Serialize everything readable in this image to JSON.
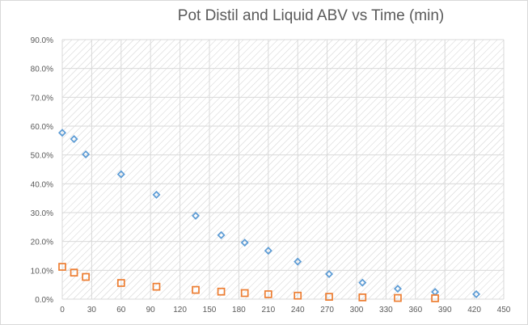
{
  "chart_data": {
    "type": "scatter",
    "title": "Pot Distil and Liquid ABV vs Time (min)",
    "xlabel": "",
    "ylabel": "",
    "xlim": [
      0,
      450
    ],
    "ylim": [
      0,
      0.9
    ],
    "x_ticks": [
      "0",
      "30",
      "60",
      "90",
      "120",
      "150",
      "180",
      "210",
      "240",
      "270",
      "300",
      "330",
      "360",
      "390",
      "420",
      "450"
    ],
    "y_ticks": [
      "0.0%",
      "10.0%",
      "20.0%",
      "30.0%",
      "40.0%",
      "50.0%",
      "60.0%",
      "70.0%",
      "80.0%",
      "90.0%"
    ],
    "grid": true,
    "plot_background": "hatched",
    "legend": "none",
    "series": [
      {
        "marker": "diamond",
        "color": "#5b9bd5",
        "x": [
          0,
          12,
          24,
          60,
          96,
          136,
          162,
          186,
          210,
          240,
          272,
          306,
          342,
          380,
          422
        ],
        "y": [
          0.577,
          0.555,
          0.502,
          0.433,
          0.362,
          0.289,
          0.222,
          0.196,
          0.168,
          0.13,
          0.087,
          0.057,
          0.036,
          0.025,
          0.017
        ]
      },
      {
        "marker": "square",
        "color": "#ed7d31",
        "x": [
          0,
          12,
          24,
          60,
          96,
          136,
          162,
          186,
          210,
          240,
          272,
          306,
          342,
          380
        ],
        "y": [
          0.112,
          0.092,
          0.077,
          0.056,
          0.043,
          0.032,
          0.026,
          0.021,
          0.017,
          0.012,
          0.008,
          0.006,
          0.004,
          0.003
        ]
      }
    ]
  }
}
